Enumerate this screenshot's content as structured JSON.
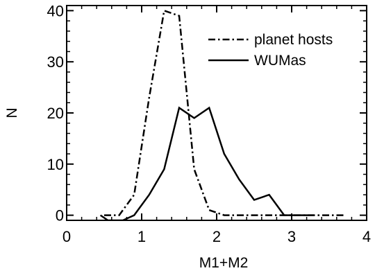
{
  "chart_data": {
    "type": "line",
    "title": "",
    "xlabel": "M1+M2",
    "ylabel": "N",
    "xlim": [
      0,
      4
    ],
    "ylim": [
      -1,
      41
    ],
    "xticks": [
      0,
      1,
      2,
      3,
      4
    ],
    "yticks": [
      0,
      10,
      20,
      30,
      40
    ],
    "grid": false,
    "legend_position": "top-right",
    "series": [
      {
        "name": "planet hosts",
        "line_style": "dash-dot",
        "color": "#000000",
        "x": [
          0.5,
          0.7,
          0.9,
          1.1,
          1.3,
          1.5,
          1.7,
          1.9,
          2.1,
          2.3,
          2.5,
          2.7,
          2.9,
          3.1,
          3.3,
          3.5,
          3.7
        ],
        "y": [
          0,
          0,
          4,
          23,
          40,
          39,
          9,
          1,
          0,
          0,
          0,
          0,
          0,
          0,
          0,
          0,
          0
        ]
      },
      {
        "name": "WUMas",
        "line_style": "solid",
        "color": "#000000",
        "x": [
          0.45,
          0.55,
          0.65,
          0.75,
          0.9,
          1.1,
          1.3,
          1.5,
          1.7,
          1.9,
          2.1,
          2.3,
          2.5,
          2.7,
          2.9,
          3.1,
          3.3
        ],
        "y": [
          0,
          -1,
          -1,
          -1,
          0,
          4,
          9,
          21,
          19,
          21,
          12,
          7,
          3,
          4,
          0,
          0,
          0
        ]
      }
    ]
  }
}
